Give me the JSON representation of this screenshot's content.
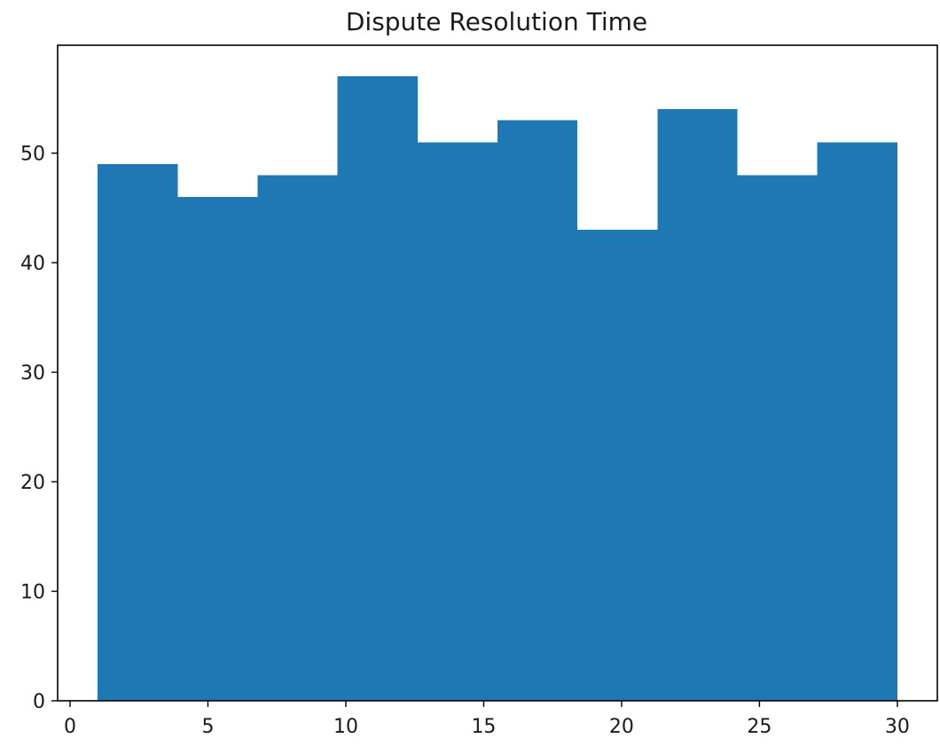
{
  "chart_data": {
    "type": "bar",
    "title": "Dispute Resolution Time",
    "xlabel": "",
    "ylabel": "",
    "bins": [
      {
        "start": 1.0,
        "end": 3.9,
        "count": 49
      },
      {
        "start": 3.9,
        "end": 6.8,
        "count": 46
      },
      {
        "start": 6.8,
        "end": 9.7,
        "count": 48
      },
      {
        "start": 9.7,
        "end": 12.6,
        "count": 57
      },
      {
        "start": 12.6,
        "end": 15.5,
        "count": 51
      },
      {
        "start": 15.5,
        "end": 18.4,
        "count": 53
      },
      {
        "start": 18.4,
        "end": 21.3,
        "count": 43
      },
      {
        "start": 21.3,
        "end": 24.2,
        "count": 54
      },
      {
        "start": 24.2,
        "end": 27.1,
        "count": 48
      },
      {
        "start": 27.1,
        "end": 30.0,
        "count": 51
      }
    ],
    "xlim": [
      -0.45,
      31.45
    ],
    "ylim": [
      0,
      59.85
    ],
    "xticks": [
      0,
      5,
      10,
      15,
      20,
      25,
      30
    ],
    "yticks": [
      0,
      10,
      20,
      30,
      40,
      50
    ],
    "bar_color": "#1f77b4",
    "grid": false,
    "legend": false
  }
}
